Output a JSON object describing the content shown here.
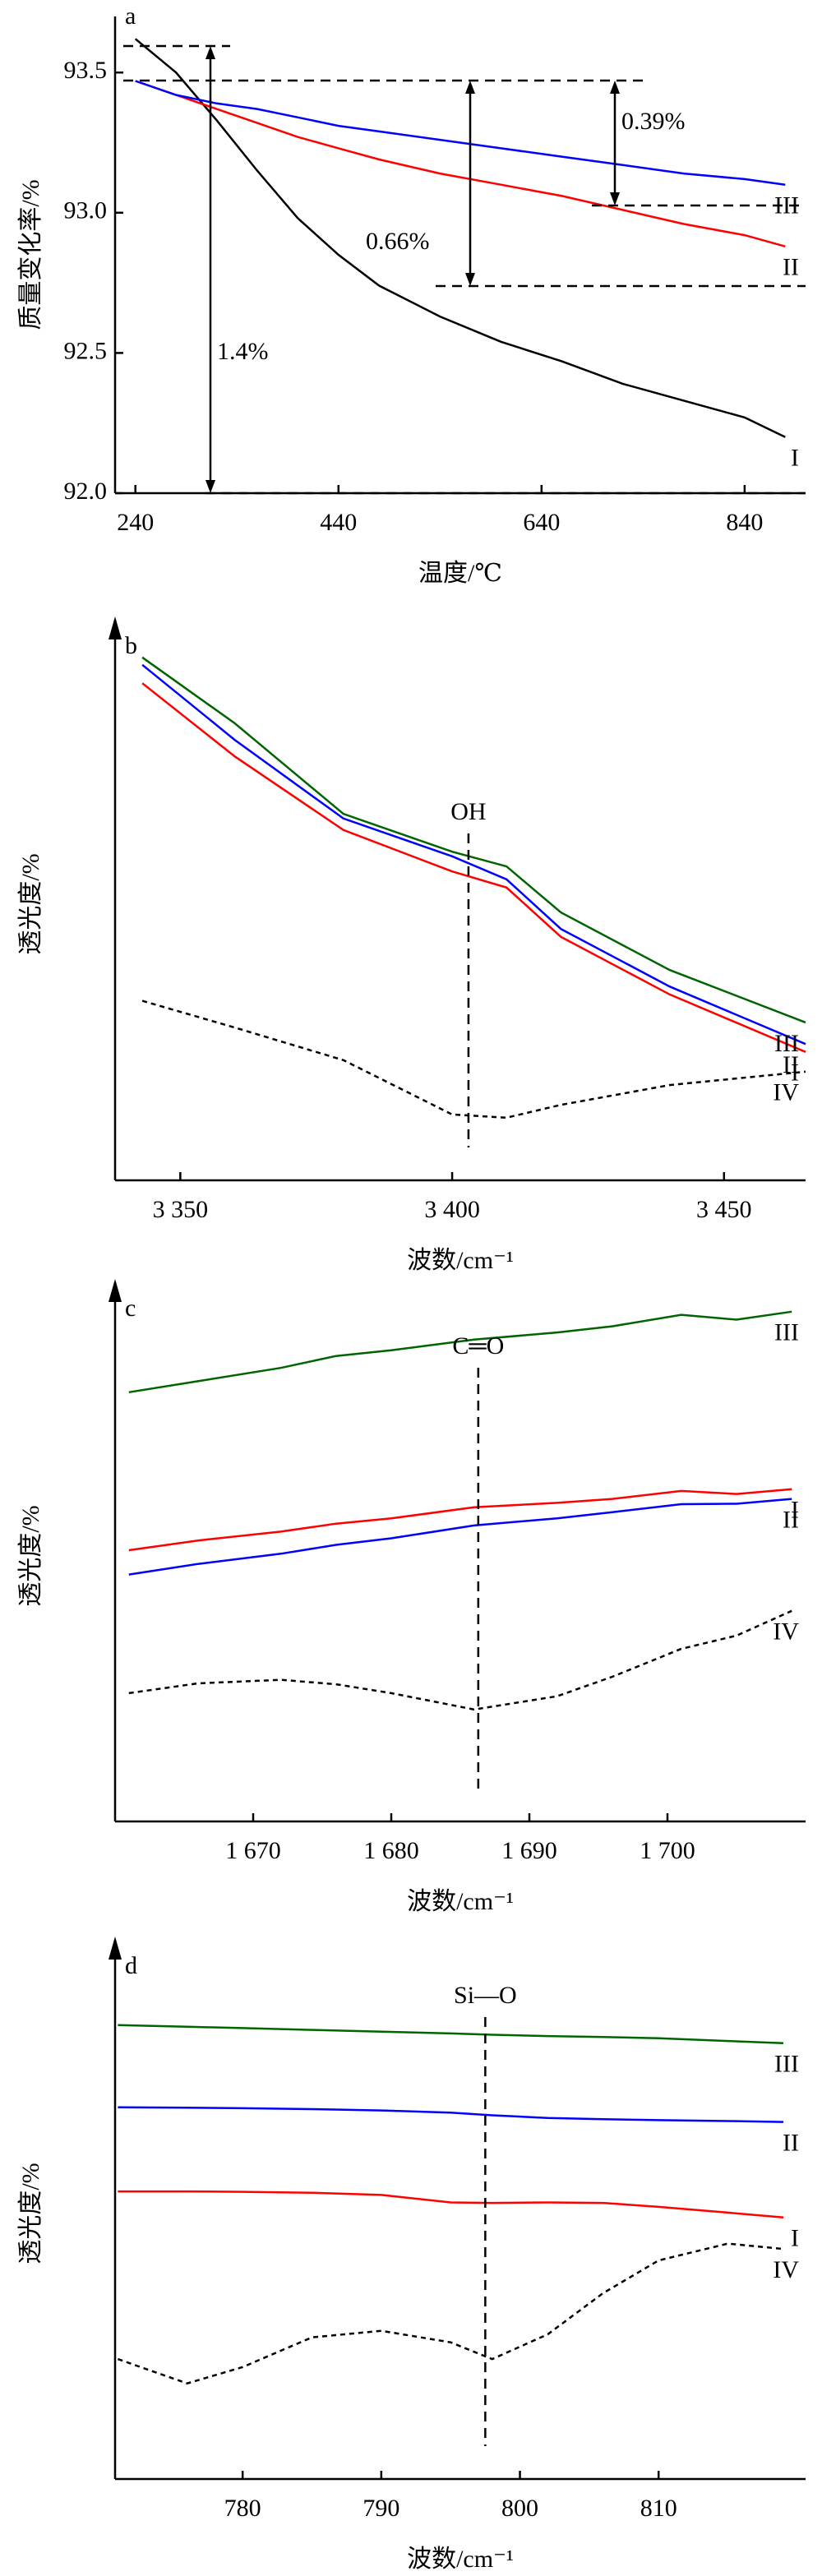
{
  "chart_data": [
    {
      "type": "line",
      "label": "a",
      "x_label": "温度/℃",
      "y_label": "质量变化率/%",
      "xlim": [
        220,
        900
      ],
      "xticks": [
        240,
        440,
        640,
        840
      ],
      "ylim": [
        92.0,
        93.7
      ],
      "yticks": [
        {
          "value": 92,
          "label": "92.0"
        },
        {
          "value": 92.5,
          "label": "92.5"
        },
        {
          "value": 93,
          "label": "93.0"
        },
        {
          "value": 93.5,
          "label": "93.5"
        }
      ],
      "x": [
        240,
        280,
        320,
        360,
        400,
        440,
        480,
        540,
        600,
        660,
        720,
        780,
        840,
        880
      ],
      "series": [
        {
          "name": "I",
          "color": "#000000",
          "values": [
            93.62,
            93.5,
            93.33,
            93.15,
            92.98,
            92.85,
            92.74,
            92.63,
            92.54,
            92.47,
            92.39,
            92.33,
            92.27,
            92.2
          ]
        },
        {
          "name": "II",
          "color": "#ff0000",
          "values": [
            93.47,
            93.42,
            93.37,
            93.32,
            93.27,
            93.23,
            93.19,
            93.14,
            93.1,
            93.06,
            93.01,
            92.96,
            92.92,
            92.88
          ]
        },
        {
          "name": "III",
          "color": "#0000ff",
          "values": [
            93.47,
            93.42,
            93.39,
            93.37,
            93.34,
            93.31,
            93.29,
            93.26,
            93.23,
            93.2,
            93.17,
            93.14,
            93.12,
            93.1
          ]
        }
      ],
      "annotations": [
        {
          "text": "0.39%"
        },
        {
          "text": "0.66%"
        },
        {
          "text": "1.4%"
        }
      ]
    },
    {
      "type": "line",
      "label": "b",
      "x_label": "波数/cm⁻¹",
      "y_label": "透光度/%",
      "xlim": [
        3338,
        3465
      ],
      "xticks": [
        {
          "value": 3350,
          "label": "3 350"
        },
        {
          "value": 3400,
          "label": "3 400"
        },
        {
          "value": 3450,
          "label": "3 450"
        }
      ],
      "ylim": [
        0,
        120
      ],
      "x": [
        3343,
        3360,
        3380,
        3400,
        3410,
        3420,
        3440,
        3465
      ],
      "series": [
        {
          "name": "I",
          "color": "#ff0000",
          "values": [
            108,
            92.1,
            76.1,
            67.1,
            63.6,
            52.9,
            40.4,
            27.9
          ]
        },
        {
          "name": "II",
          "color": "#0000ff",
          "values": [
            112,
            95.7,
            78.6,
            70.4,
            65.4,
            54.6,
            42.1,
            29.6
          ]
        },
        {
          "name": "III",
          "color": "#006400",
          "values": [
            113.6,
            99.3,
            79.6,
            71.4,
            68.2,
            58.2,
            45.7,
            34.3
          ]
        },
        {
          "name": "IV",
          "color": "#000000",
          "dashed": true,
          "values": [
            39,
            33.2,
            26.1,
            14.3,
            13.6,
            16.4,
            20.7,
            23.6
          ]
        }
      ],
      "annotations": [
        {
          "text": "OH",
          "x": 3403
        }
      ]
    },
    {
      "type": "line",
      "label": "c",
      "x_label": "波数/cm⁻¹",
      "y_label": "透光度/%",
      "xlim": [
        1660,
        1710
      ],
      "xticks": [
        {
          "value": 1670,
          "label": "1 670"
        },
        {
          "value": 1680,
          "label": "1 680"
        },
        {
          "value": 1690,
          "label": "1 690"
        },
        {
          "value": 1700,
          "label": "1 700"
        }
      ],
      "ylim": [
        0,
        120
      ],
      "x": [
        1661,
        1666,
        1672,
        1676,
        1680,
        1686,
        1692,
        1696,
        1701,
        1705,
        1709
      ],
      "series": [
        {
          "name": "I",
          "color": "#ff0000",
          "values": [
            61.3,
            63.5,
            65.5,
            67.3,
            68.5,
            71,
            72,
            72.9,
            74.7,
            74,
            75.1
          ]
        },
        {
          "name": "II",
          "color": "#0000ff",
          "values": [
            55.8,
            58.2,
            60.5,
            62.5,
            64,
            66.9,
            68.5,
            69.9,
            71.7,
            71.8,
            72.9
          ]
        },
        {
          "name": "III",
          "color": "#006400",
          "values": [
            97,
            99.5,
            102.5,
            105.2,
            106.5,
            108.9,
            110.5,
            111.9,
            114.5,
            113.4,
            115.2
          ]
        },
        {
          "name": "IV",
          "color": "#000000",
          "dashed": true,
          "values": [
            29,
            31.2,
            32,
            31,
            29,
            25.3,
            28.3,
            32.7,
            39,
            42,
            47.6
          ]
        }
      ],
      "annotations": [
        {
          "text": "C═O",
          "x": 1686.3
        }
      ]
    },
    {
      "type": "line",
      "label": "d",
      "x_label": "波数/cm⁻¹",
      "y_label": "透光度/%",
      "xlim": [
        770.8,
        820.6
      ],
      "xticks": [
        780,
        790,
        800,
        810
      ],
      "ylim": [
        0,
        120
      ],
      "x": [
        771,
        776,
        780,
        785,
        790,
        795,
        798,
        802,
        806,
        810,
        815,
        819
      ],
      "series": [
        {
          "name": "I",
          "color": "#ff0000",
          "values": [
            65,
            65,
            64.9,
            64.7,
            64.2,
            62.5,
            62.4,
            62.5,
            62.4,
            61.5,
            60.2,
            59.1
          ]
        },
        {
          "name": "II",
          "color": "#0000ff",
          "values": [
            84,
            83.9,
            83.8,
            83.6,
            83.3,
            82.8,
            82.2,
            81.6,
            81.3,
            81.1,
            80.9,
            80.7
          ]
        },
        {
          "name": "III",
          "color": "#006400",
          "values": [
            102.6,
            102.2,
            101.9,
            101.5,
            101.1,
            100.7,
            100.4,
            100.1,
            99.9,
            99.6,
            99,
            98.5
          ]
        },
        {
          "name": "IV",
          "color": "#000000",
          "dashed": true,
          "values": [
            27.1,
            21.6,
            25.3,
            32,
            33.5,
            30.9,
            27.1,
            32.7,
            42,
            49.4,
            53.2,
            52
          ]
        }
      ],
      "annotations": [
        {
          "text": "Si—O",
          "x": 797.5
        }
      ]
    }
  ]
}
